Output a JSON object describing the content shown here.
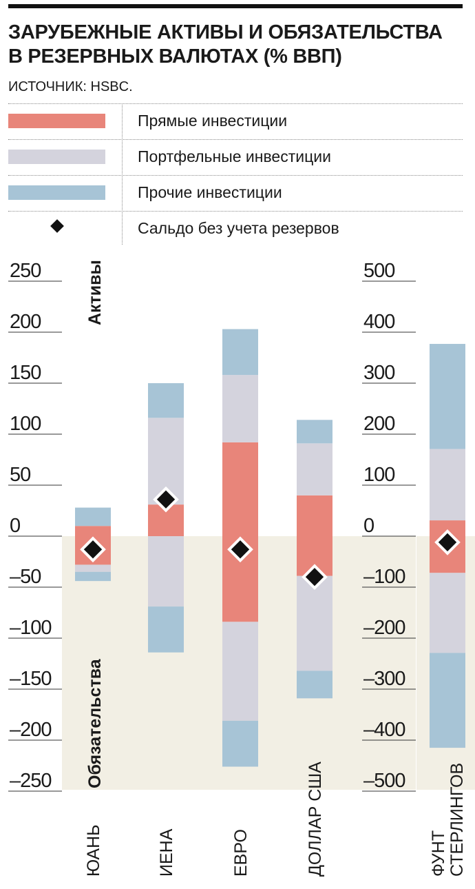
{
  "header": {
    "title_line1": "ЗАРУБЕЖНЫЕ АКТИВЫ И ОБЯЗАТЕЛЬСТВА",
    "title_line2": "В РЕЗЕРВНЫХ ВАЛЮТАХ (% ВВП)",
    "source": "ИСТОЧНИК: HSBC."
  },
  "legend": [
    {
      "key": "direct",
      "label": "Прямые инвестиции",
      "color": "#e8857a"
    },
    {
      "key": "portfolio",
      "label": "Портфельные инвестиции",
      "color": "#d4d3dd"
    },
    {
      "key": "other",
      "label": "Прочие инвестиции",
      "color": "#a7c4d6"
    },
    {
      "key": "balance",
      "label": "Сальдо без учета резервов",
      "marker": "diamond"
    }
  ],
  "chart_data": {
    "type": "bar",
    "stacked": true,
    "title": "ЗАРУБЕЖНЫЕ АКТИВЫ И ОБЯЗАТЕЛЬСТВА В РЕЗЕРВНЫХ ВАЛЮТАХ (% ВВП)",
    "categories": [
      "ЮАНЬ",
      "ИЕНА",
      "ЕВРО",
      "ДОЛЛАР США",
      "ФУНТ СТЕРЛИНГОВ"
    ],
    "category_lines": [
      [
        "ЮАНЬ"
      ],
      [
        "ИЕНА"
      ],
      [
        "ЕВРО"
      ],
      [
        "ДОЛЛАР США"
      ],
      [
        "ФУНТ",
        "СТЕРЛИНГОВ"
      ]
    ],
    "left_axis": {
      "ylim": [
        -250,
        250
      ],
      "ticks": [
        250,
        200,
        150,
        100,
        50,
        0,
        -50,
        -100,
        -150,
        -200,
        -250
      ],
      "tick_labels": [
        "250",
        "200",
        "150",
        "100",
        "50",
        "0",
        "–50",
        "–100",
        "–150",
        "–200",
        "–250"
      ]
    },
    "right_axis": {
      "ylim": [
        -500,
        500
      ],
      "ticks": [
        500,
        400,
        300,
        200,
        100,
        0,
        -100,
        -200,
        -300,
        -400,
        -500
      ],
      "tick_labels": [
        "500",
        "400",
        "300",
        "200",
        "100",
        "0",
        "–100",
        "–200",
        "–300",
        "–400",
        "–500"
      ],
      "applies_to": [
        "ФУНТ СТЕРЛИНГОВ"
      ]
    },
    "assets_label": "Активы",
    "liabilities_label": "Обязательства",
    "colors": {
      "direct": "#e8857a",
      "portfolio": "#d4d3dd",
      "other": "#a7c4d6",
      "liab_bg": "#f2efe4",
      "marker": "#111111"
    },
    "assets": {
      "direct": [
        10,
        31,
        92,
        40,
        31
      ],
      "portfolio": [
        0,
        85,
        66,
        51,
        140
      ],
      "other": [
        18,
        34,
        45,
        23,
        206
      ]
    },
    "liabilities": {
      "direct": [
        -28,
        0,
        -84,
        -39,
        -72
      ],
      "portfolio": [
        -7,
        -69,
        -97,
        -93,
        -157
      ],
      "other": [
        -9,
        -45,
        -45,
        -27,
        -186
      ]
    },
    "balance": [
      -13,
      36,
      -13,
      -40,
      -12
    ]
  }
}
